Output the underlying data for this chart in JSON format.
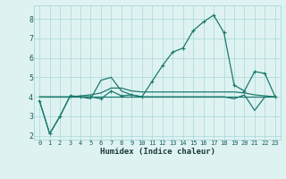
{
  "xlabel": "Humidex (Indice chaleur)",
  "x": [
    0,
    1,
    2,
    3,
    4,
    5,
    6,
    7,
    8,
    9,
    10,
    11,
    12,
    13,
    14,
    15,
    16,
    17,
    18,
    19,
    20,
    21,
    22,
    23
  ],
  "y_main": [
    3.8,
    2.1,
    3.0,
    4.05,
    4.0,
    4.0,
    3.9,
    4.3,
    4.05,
    4.1,
    4.0,
    4.8,
    5.6,
    6.3,
    6.5,
    7.4,
    7.85,
    8.2,
    7.3,
    4.6,
    4.3,
    5.3,
    5.2,
    4.0
  ],
  "y_flat": [
    4.0,
    4.0,
    4.0,
    4.0,
    4.0,
    4.0,
    4.0,
    4.0,
    4.0,
    4.0,
    4.0,
    4.0,
    4.0,
    4.0,
    4.0,
    4.0,
    4.0,
    4.0,
    4.0,
    4.0,
    4.0,
    4.0,
    4.0,
    4.0
  ],
  "y_line2": [
    3.8,
    2.1,
    3.0,
    4.05,
    4.0,
    3.9,
    4.85,
    5.0,
    4.3,
    4.1,
    4.0,
    4.0,
    4.0,
    4.0,
    4.0,
    4.0,
    4.0,
    4.0,
    4.0,
    3.9,
    4.1,
    3.3,
    4.0,
    4.0
  ],
  "y_line3": [
    4.0,
    4.0,
    4.0,
    4.0,
    4.05,
    4.1,
    4.2,
    4.45,
    4.45,
    4.3,
    4.25,
    4.25,
    4.25,
    4.25,
    4.25,
    4.25,
    4.25,
    4.25,
    4.25,
    4.25,
    4.2,
    4.1,
    4.05,
    4.0
  ],
  "line_color": "#1a7a6e",
  "bg_color": "#dff2f2",
  "grid_color": "#a8d8d8",
  "ylim": [
    1.8,
    8.7
  ],
  "xlim": [
    -0.5,
    23.5
  ],
  "yticks": [
    2,
    3,
    4,
    5,
    6,
    7,
    8
  ],
  "xticks": [
    0,
    1,
    2,
    3,
    4,
    5,
    6,
    7,
    8,
    9,
    10,
    11,
    12,
    13,
    14,
    15,
    16,
    17,
    18,
    19,
    20,
    21,
    22,
    23
  ]
}
